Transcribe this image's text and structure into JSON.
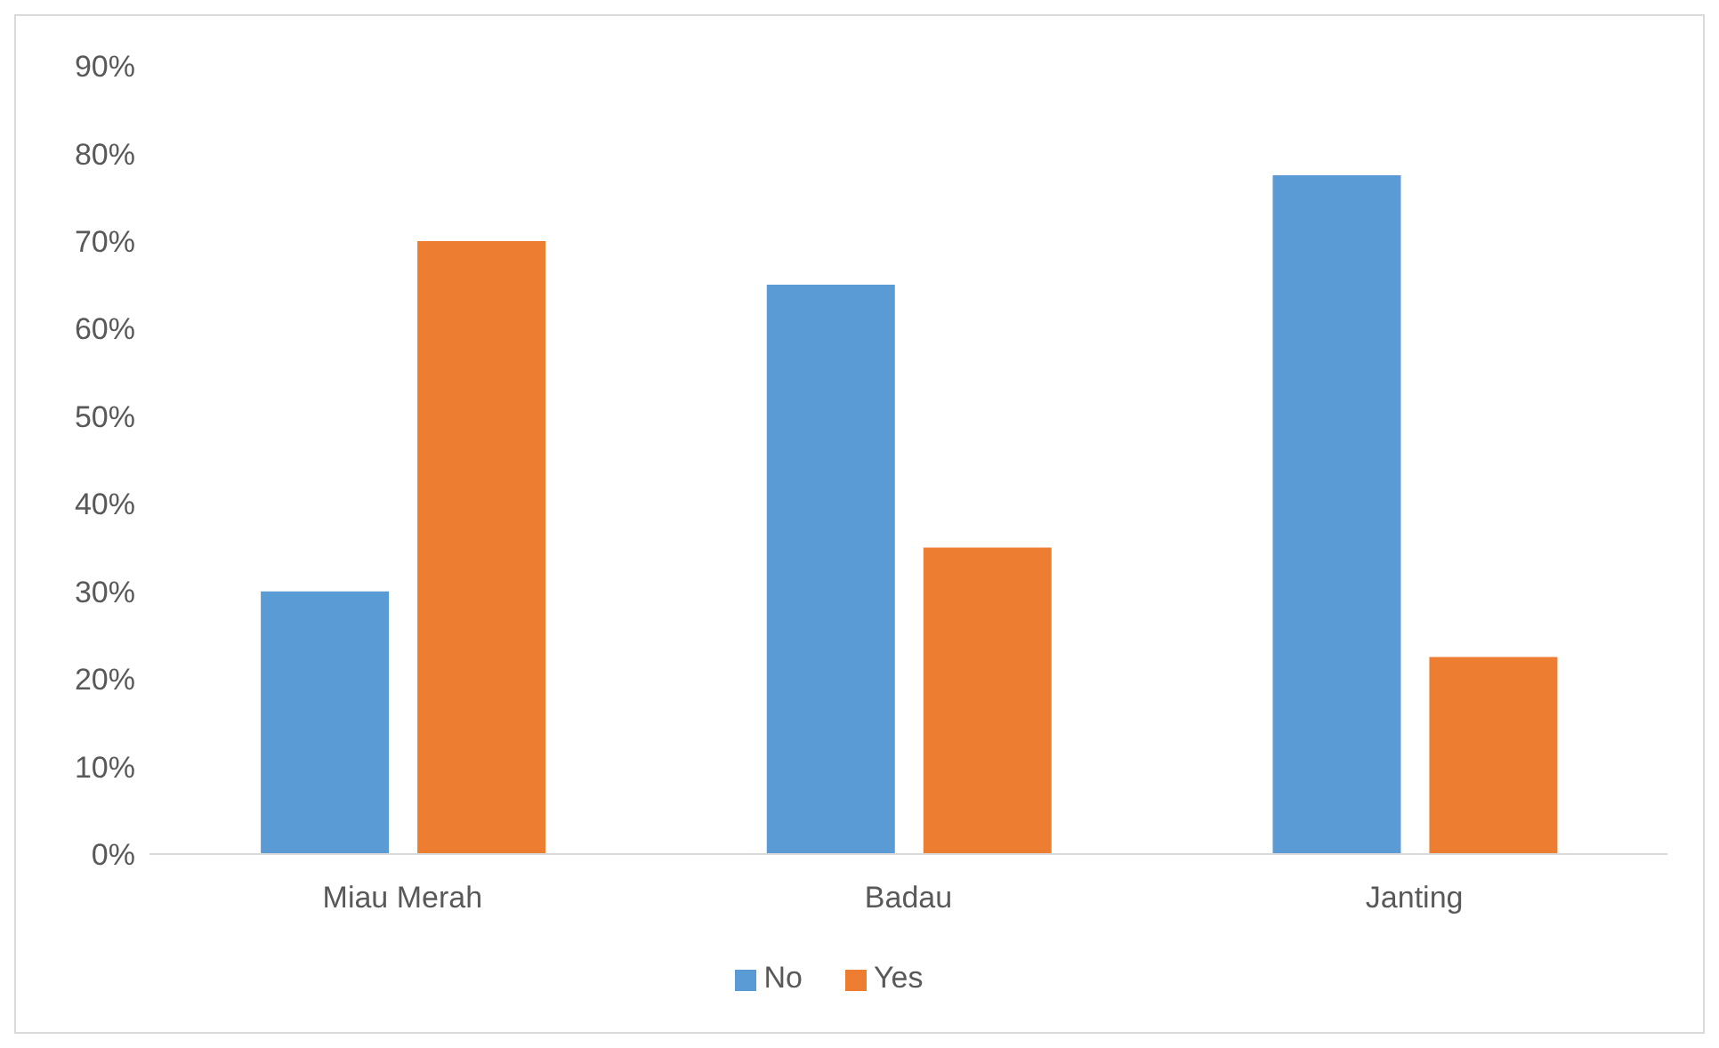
{
  "chart_data": {
    "type": "bar",
    "categories": [
      "Miau Merah",
      "Badau",
      "Janting"
    ],
    "series": [
      {
        "name": "No",
        "color": "#5b9bd5",
        "values": [
          30,
          65,
          77.5
        ]
      },
      {
        "name": "Yes",
        "color": "#ed7d31",
        "values": [
          70,
          35,
          22.5
        ]
      }
    ],
    "ylim": [
      0,
      90
    ],
    "yticks": [
      {
        "value": 0,
        "label": "0%"
      },
      {
        "value": 10,
        "label": "10%"
      },
      {
        "value": 20,
        "label": "20%"
      },
      {
        "value": 30,
        "label": "30%"
      },
      {
        "value": 40,
        "label": "40%"
      },
      {
        "value": 50,
        "label": "50%"
      },
      {
        "value": 60,
        "label": "60%"
      },
      {
        "value": 70,
        "label": "70%"
      },
      {
        "value": 80,
        "label": "80%"
      },
      {
        "value": 90,
        "label": "90%"
      }
    ],
    "grid": false,
    "legend": "bottom"
  }
}
